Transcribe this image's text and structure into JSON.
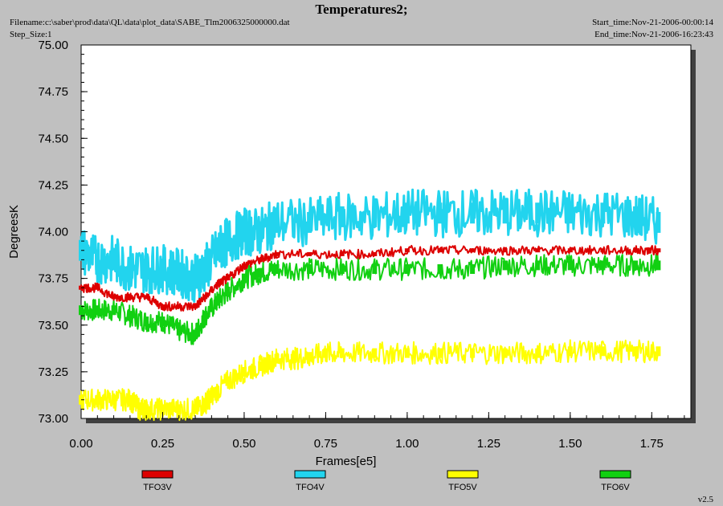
{
  "header": {
    "title": "Temperatures2;",
    "filename": "Filename:c:\\saber\\prod\\data\\QL\\data\\plot_data\\SABE_Tlm2006325000000.dat",
    "step_size": "Step_Size:1",
    "start_time": "Start_time:Nov-21-2006-00:00:14",
    "end_time": "End_time:Nov-21-2006-16:23:43"
  },
  "version": "v2.5",
  "colors": {
    "background": "#c0c0c0",
    "plot_area": "#ffffff",
    "TFO3V": "#dd0000",
    "TFO4V": "#22d4ee",
    "TFO5V": "#ffff00",
    "TFO6V": "#11d011"
  },
  "chart_data": {
    "type": "line",
    "title": "Temperatures2;",
    "xlabel": "Frames[e5]",
    "ylabel": "DegreesK",
    "xlim": [
      0,
      1.87
    ],
    "ylim": [
      73.0,
      75.0
    ],
    "x_ticks": [
      "0.00",
      "0.25",
      "0.50",
      "0.75",
      "1.00",
      "1.25",
      "1.50",
      "1.75"
    ],
    "y_ticks": [
      "73.00",
      "73.25",
      "73.50",
      "73.75",
      "74.00",
      "74.25",
      "74.50",
      "74.75",
      "75.00"
    ],
    "legend_position": "bottom",
    "series": [
      {
        "name": "TFO3V",
        "x": [
          0.0,
          0.05,
          0.1,
          0.15,
          0.2,
          0.25,
          0.3,
          0.35,
          0.38,
          0.42,
          0.45,
          0.5,
          0.55,
          0.6,
          0.7,
          0.8,
          0.9,
          1.0,
          1.1,
          1.2,
          1.3,
          1.4,
          1.5,
          1.6,
          1.7,
          1.77
        ],
        "y": [
          73.7,
          73.7,
          73.65,
          73.65,
          73.65,
          73.6,
          73.6,
          73.6,
          73.65,
          73.72,
          73.75,
          73.82,
          73.85,
          73.88,
          73.88,
          73.88,
          73.88,
          73.9,
          73.9,
          73.9,
          73.9,
          73.9,
          73.9,
          73.9,
          73.9,
          73.9
        ]
      },
      {
        "name": "TFO4V",
        "x": [
          0.0,
          0.05,
          0.1,
          0.15,
          0.2,
          0.25,
          0.3,
          0.35,
          0.38,
          0.42,
          0.45,
          0.5,
          0.55,
          0.6,
          0.7,
          0.8,
          0.9,
          1.0,
          1.1,
          1.2,
          1.3,
          1.4,
          1.5,
          1.6,
          1.7,
          1.77
        ],
        "y": [
          73.9,
          73.85,
          73.85,
          73.8,
          73.8,
          73.8,
          73.78,
          73.75,
          73.8,
          73.9,
          73.95,
          74.0,
          74.0,
          74.05,
          74.05,
          74.08,
          74.08,
          74.1,
          74.1,
          74.1,
          74.1,
          74.1,
          74.1,
          74.1,
          74.08,
          74.05
        ]
      },
      {
        "name": "TFO5V",
        "x": [
          0.0,
          0.05,
          0.1,
          0.15,
          0.18,
          0.2,
          0.25,
          0.3,
          0.35,
          0.38,
          0.4,
          0.45,
          0.5,
          0.55,
          0.6,
          0.65,
          0.7,
          0.75,
          0.8,
          0.9,
          1.0,
          1.1,
          1.2,
          1.3,
          1.4,
          1.5,
          1.6,
          1.7,
          1.77
        ],
        "y": [
          73.1,
          73.1,
          73.1,
          73.1,
          73.05,
          73.05,
          73.05,
          73.05,
          73.05,
          73.08,
          73.12,
          73.2,
          73.25,
          73.28,
          73.32,
          73.32,
          73.33,
          73.35,
          73.35,
          73.35,
          73.35,
          73.35,
          73.35,
          73.35,
          73.35,
          73.36,
          73.36,
          73.36,
          73.36
        ]
      },
      {
        "name": "TFO6V",
        "x": [
          0.0,
          0.05,
          0.1,
          0.15,
          0.2,
          0.25,
          0.3,
          0.35,
          0.38,
          0.42,
          0.45,
          0.5,
          0.55,
          0.6,
          0.7,
          0.8,
          0.9,
          1.0,
          1.1,
          1.2,
          1.3,
          1.4,
          1.5,
          1.6,
          1.7,
          1.77
        ],
        "y": [
          73.58,
          73.58,
          73.58,
          73.55,
          73.52,
          73.52,
          73.47,
          73.45,
          73.55,
          73.63,
          73.68,
          73.75,
          73.78,
          73.8,
          73.8,
          73.8,
          73.8,
          73.8,
          73.8,
          73.8,
          73.82,
          73.82,
          73.82,
          73.82,
          73.82,
          73.82
        ]
      }
    ]
  }
}
